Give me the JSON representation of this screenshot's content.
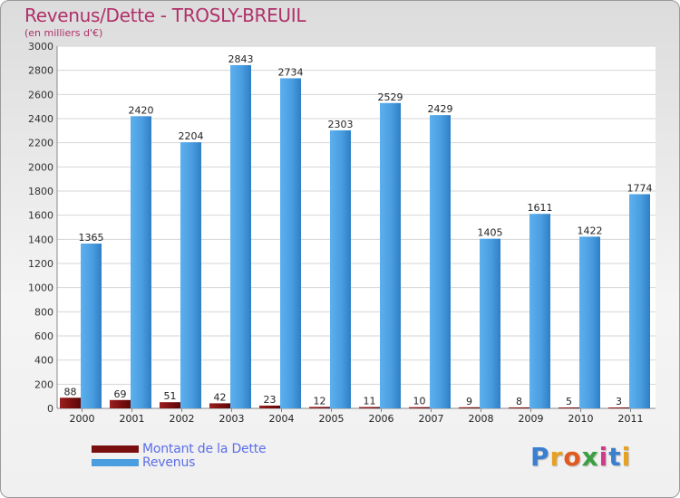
{
  "chart_data": {
    "type": "bar",
    "title": "Revenus/Dette - TROSLY-BREUIL",
    "subtitle": "(en milliers d'€)",
    "categories": [
      "2000",
      "2001",
      "2002",
      "2003",
      "2004",
      "2005",
      "2006",
      "2007",
      "2008",
      "2009",
      "2010",
      "2011"
    ],
    "series": [
      {
        "name": "Montant de la Dette",
        "color": "#7a0f0f",
        "values": [
          88,
          69,
          51,
          42,
          23,
          12,
          11,
          10,
          9,
          8,
          5,
          3
        ]
      },
      {
        "name": "Revenus",
        "color": "#4a9ee0",
        "values": [
          1365,
          2420,
          2204,
          2843,
          2734,
          2303,
          2529,
          2429,
          1405,
          1611,
          1422,
          1774
        ]
      }
    ],
    "ylim": [
      0,
      3000
    ],
    "yticks": [
      0,
      200,
      400,
      600,
      800,
      1000,
      1200,
      1400,
      1600,
      1800,
      2000,
      2200,
      2400,
      2600,
      2800,
      3000
    ],
    "grid": true,
    "legend_position": "bottom-left"
  },
  "logo": {
    "letters": [
      {
        "ch": "P",
        "color": "#3a7fd0"
      },
      {
        "ch": "r",
        "color": "#e8a020"
      },
      {
        "ch": "o",
        "color": "#e05a20"
      },
      {
        "ch": "x",
        "color": "#3aa040"
      },
      {
        "ch": "i",
        "color": "#d03a8a"
      },
      {
        "ch": "t",
        "color": "#3a7fd0"
      },
      {
        "ch": "i",
        "color": "#e8a020"
      }
    ]
  }
}
